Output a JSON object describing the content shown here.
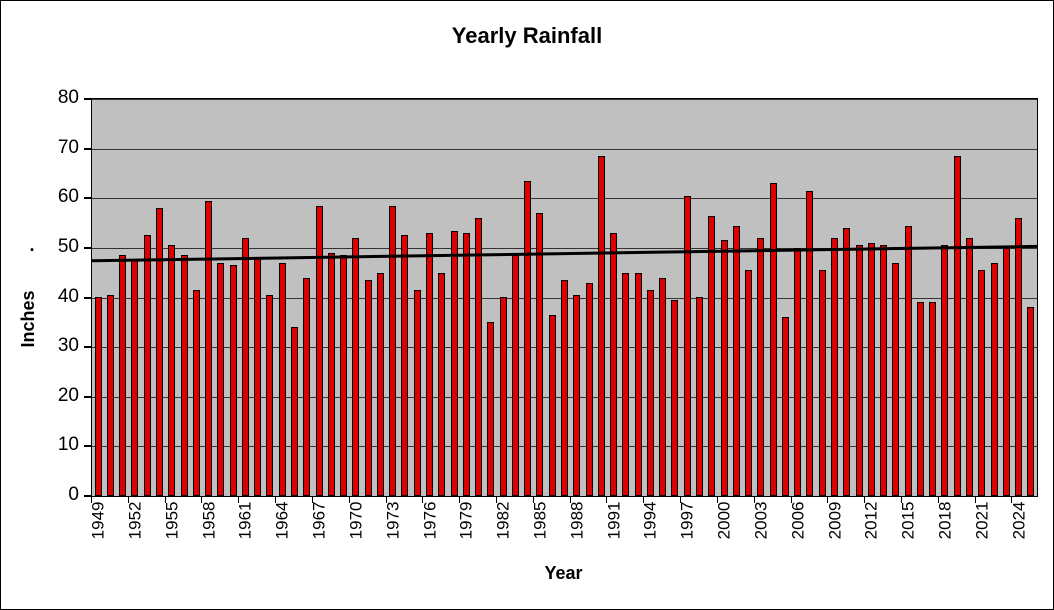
{
  "figure": {
    "title": "Yearly Rainfall",
    "x_axis_title": "Year",
    "y_axis_title": "Inches",
    "y_axis_dot": "."
  },
  "chart_data": {
    "type": "bar",
    "title": "Yearly Rainfall",
    "xlabel": "Year",
    "ylabel": "Inches",
    "ylim": [
      0,
      80
    ],
    "yticks": [
      0,
      10,
      20,
      30,
      40,
      50,
      60,
      70,
      80
    ],
    "xtick_interval": 3,
    "grid": true,
    "legend": false,
    "plot_bg": "#c0c0c0",
    "bar_color": "#dd0000",
    "bar_border": "#000000",
    "trendline": {
      "color": "#000000",
      "start_value": 47.4,
      "end_value": 50.3
    },
    "categories": [
      1949,
      1950,
      1951,
      1952,
      1953,
      1954,
      1955,
      1956,
      1957,
      1958,
      1959,
      1960,
      1961,
      1962,
      1963,
      1964,
      1965,
      1966,
      1967,
      1968,
      1969,
      1970,
      1971,
      1972,
      1973,
      1974,
      1975,
      1976,
      1977,
      1978,
      1979,
      1980,
      1981,
      1982,
      1983,
      1984,
      1985,
      1986,
      1987,
      1988,
      1989,
      1990,
      1991,
      1992,
      1993,
      1994,
      1995,
      1996,
      1997,
      1998,
      1999,
      2000,
      2001,
      2002,
      2003,
      2004,
      2005,
      2006,
      2007,
      2008,
      2009,
      2010,
      2011,
      2012,
      2013,
      2014,
      2015,
      2016,
      2017,
      2018,
      2019,
      2020,
      2021,
      2022,
      2023,
      2024,
      2025
    ],
    "values": [
      40,
      40.5,
      48.5,
      47.5,
      52.5,
      58,
      50.5,
      48.5,
      41.5,
      59.5,
      47,
      46.5,
      52,
      48,
      40.5,
      47,
      34,
      44,
      58.5,
      49,
      48.5,
      52,
      43.5,
      45,
      58.5,
      52.5,
      41.5,
      53,
      45,
      53.5,
      53,
      56,
      35,
      40,
      48.5,
      63.5,
      57,
      36.5,
      43.5,
      40.5,
      43,
      68.5,
      53,
      45,
      45,
      41.5,
      44,
      39.5,
      60.5,
      40,
      56.5,
      51.5,
      54.5,
      45.5,
      52,
      63,
      36,
      50,
      61.5,
      45.5,
      52,
      54,
      50.5,
      51,
      50.5,
      47,
      54.5,
      39,
      39,
      50.5,
      68.5,
      52,
      45.5,
      47,
      50,
      56,
      38
    ]
  }
}
